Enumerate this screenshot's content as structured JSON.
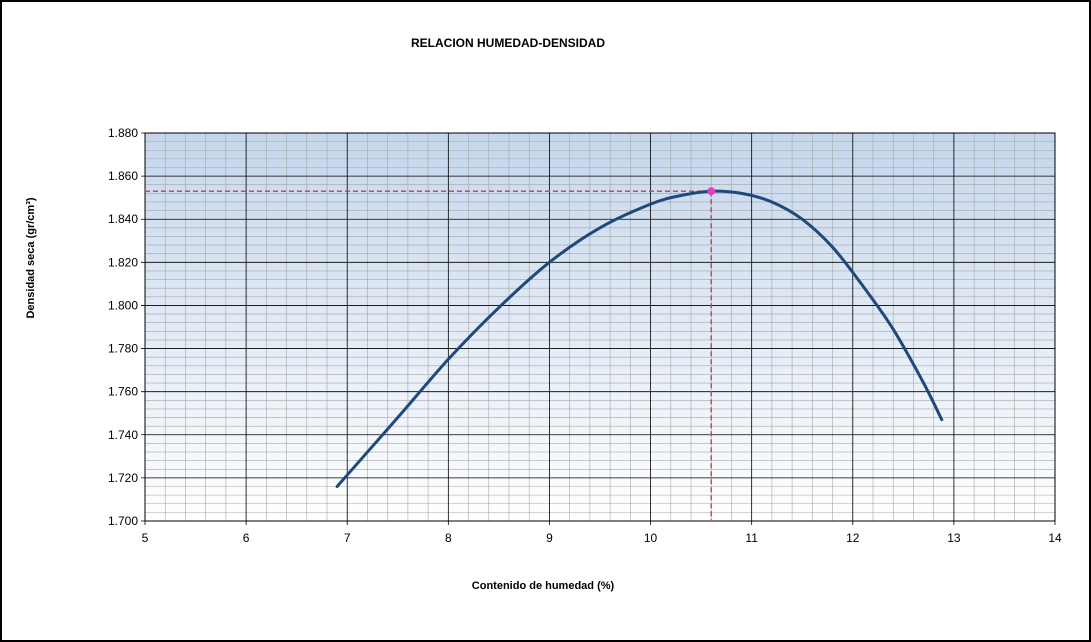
{
  "chart_data": {
    "type": "line",
    "title": "RELACION HUMEDAD-DENSIDAD",
    "xlabel": "Contenido de humedad (%)",
    "ylabel": "Densidad seca (gr/cm³)",
    "xlim": [
      5,
      14
    ],
    "ylim": [
      1.7,
      1.88
    ],
    "x_ticks": [
      "5",
      "6",
      "7",
      "8",
      "9",
      "10",
      "11",
      "12",
      "13",
      "14"
    ],
    "y_ticks": [
      "1.700",
      "1.720",
      "1.740",
      "1.760",
      "1.780",
      "1.800",
      "1.820",
      "1.840",
      "1.860",
      "1.880"
    ],
    "grid": true,
    "legend": "none",
    "colors": {
      "curve": "#1f497d",
      "marker": "#e040c0",
      "guide": "#c0504d",
      "grid_major": "#000000",
      "grid_minor": "#a6a6a6",
      "plot_bg_top": "#c5d6ec",
      "plot_bg_bottom": "#ffffff"
    },
    "series": [
      {
        "x": [
          6.9,
          7.5,
          8.0,
          8.5,
          9.0,
          9.5,
          10.0,
          10.3,
          10.6,
          10.9,
          11.2,
          11.5,
          11.8,
          12.1,
          12.4,
          12.7,
          12.88
        ],
        "y": [
          1.716,
          1.748,
          1.775,
          1.799,
          1.82,
          1.836,
          1.847,
          1.851,
          1.853,
          1.852,
          1.848,
          1.84,
          1.827,
          1.809,
          1.789,
          1.764,
          1.747
        ]
      }
    ],
    "optimum": {
      "x": 10.6,
      "y": 1.853
    }
  }
}
